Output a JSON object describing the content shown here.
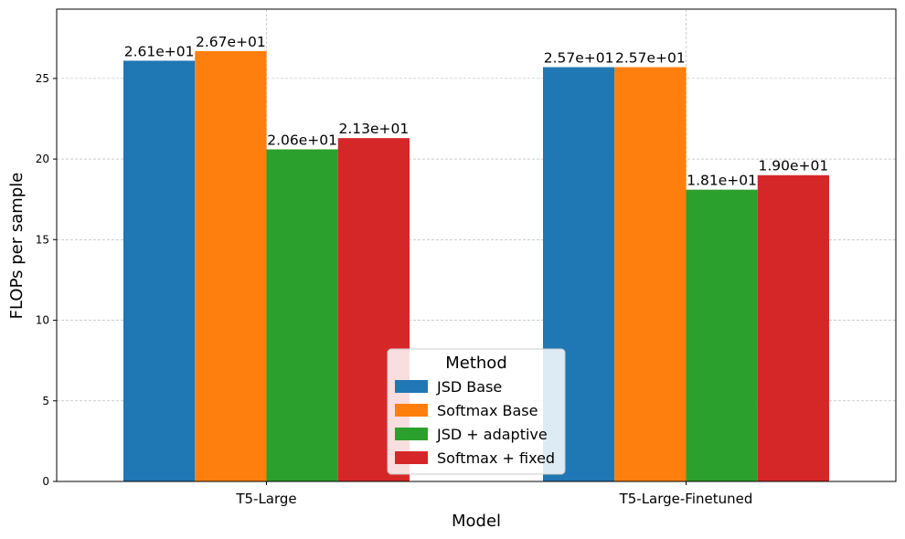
{
  "chart_data": {
    "type": "bar",
    "xlabel": "Model",
    "ylabel": "FLOPs per sample",
    "categories": [
      "T5-Large",
      "T5-Large-Finetuned"
    ],
    "ylim": [
      0,
      29.3
    ],
    "yticks": [
      0,
      5,
      10,
      15,
      20,
      25
    ],
    "grid": true,
    "legend": {
      "title": "Method",
      "placement": "lower-center"
    },
    "series": [
      {
        "name": "JSD Base",
        "color": "#1f77b4",
        "values": [
          26.1,
          25.7
        ],
        "labels": [
          "2.61e+01",
          "2.57e+01"
        ]
      },
      {
        "name": "Softmax Base",
        "color": "#ff7f0e",
        "values": [
          26.7,
          25.7
        ],
        "labels": [
          "2.67e+01",
          "2.57e+01"
        ]
      },
      {
        "name": "JSD + adaptive",
        "color": "#2ca02c",
        "values": [
          20.6,
          18.1
        ],
        "labels": [
          "2.06e+01",
          "1.81e+01"
        ]
      },
      {
        "name": "Softmax + fixed",
        "color": "#d62728",
        "values": [
          21.3,
          19.0
        ],
        "labels": [
          "2.13e+01",
          "1.90e+01"
        ]
      }
    ]
  }
}
